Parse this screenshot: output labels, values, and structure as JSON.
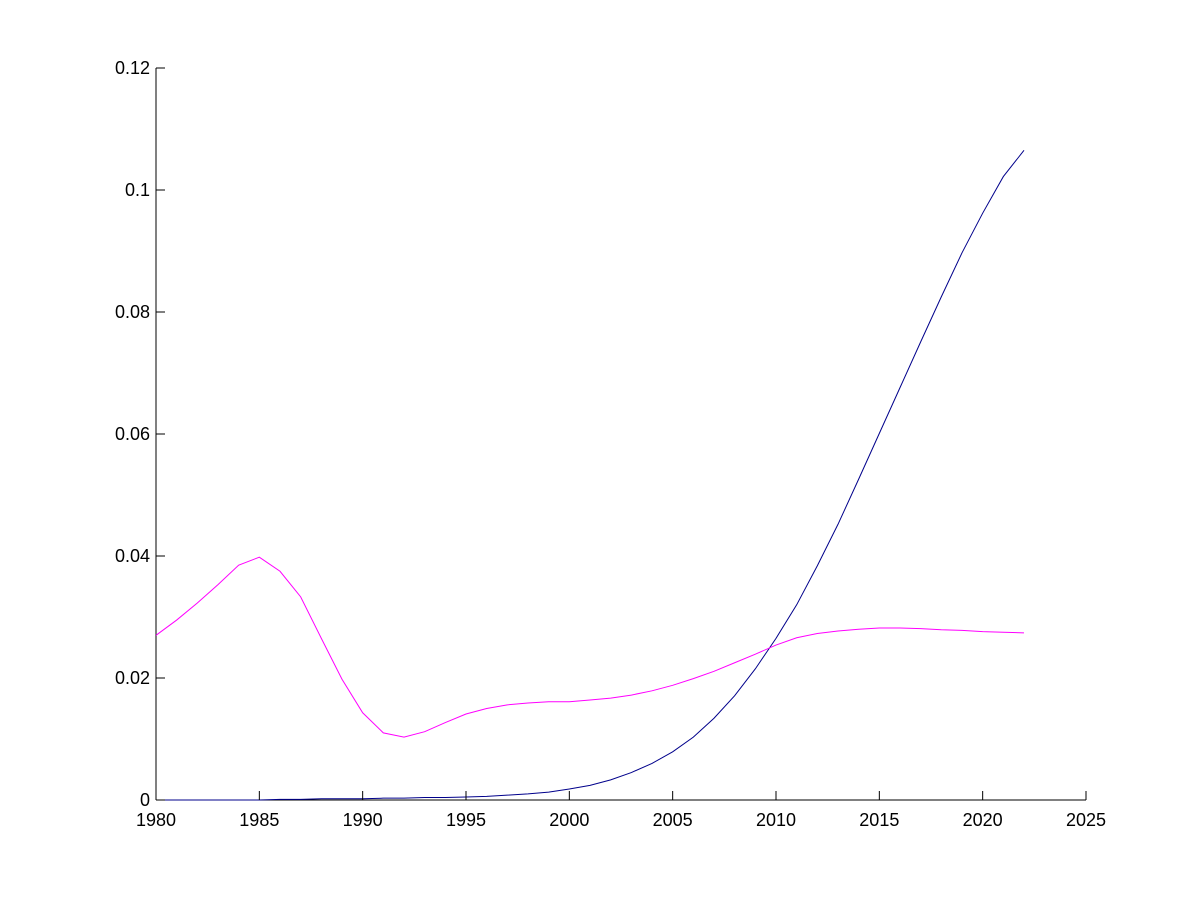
{
  "chart_data": {
    "type": "line",
    "title": "",
    "xlabel": "",
    "ylabel": "",
    "xlim": [
      1980,
      2025
    ],
    "ylim": [
      0,
      0.12
    ],
    "grid": false,
    "legend": "none",
    "x_ticks": [
      {
        "value": 1980,
        "label": "1980"
      },
      {
        "value": 1985,
        "label": "1985"
      },
      {
        "value": 1990,
        "label": "1990"
      },
      {
        "value": 1995,
        "label": "1995"
      },
      {
        "value": 2000,
        "label": "2000"
      },
      {
        "value": 2005,
        "label": "2005"
      },
      {
        "value": 2010,
        "label": "2010"
      },
      {
        "value": 2015,
        "label": "2015"
      },
      {
        "value": 2020,
        "label": "2020"
      },
      {
        "value": 2025,
        "label": "2025"
      }
    ],
    "y_ticks": [
      {
        "value": 0,
        "label": "0"
      },
      {
        "value": 0.02,
        "label": "0.02"
      },
      {
        "value": 0.04,
        "label": "0.04"
      },
      {
        "value": 0.06,
        "label": "0.06"
      },
      {
        "value": 0.08,
        "label": "0.08"
      },
      {
        "value": 0.1,
        "label": "0.1"
      },
      {
        "value": 0.12,
        "label": "0.12"
      }
    ],
    "x": [
      1980,
      1981,
      1982,
      1983,
      1984,
      1985,
      1986,
      1987,
      1988,
      1989,
      1990,
      1991,
      1992,
      1993,
      1994,
      1995,
      1996,
      1997,
      1998,
      1999,
      2000,
      2001,
      2002,
      2003,
      2004,
      2005,
      2006,
      2007,
      2008,
      2009,
      2010,
      2011,
      2012,
      2013,
      2014,
      2015,
      2016,
      2017,
      2018,
      2019,
      2020,
      2021,
      2022
    ],
    "series": [
      {
        "color": "#00008b",
        "values": [
          0.0,
          0.0,
          0.0,
          0.0,
          0.0,
          0.0,
          0.0001,
          0.0001,
          0.0002,
          0.0002,
          0.0002,
          0.0003,
          0.0003,
          0.0004,
          0.0004,
          0.0005,
          0.0006,
          0.0008,
          0.001,
          0.0013,
          0.0018,
          0.0024,
          0.0033,
          0.0045,
          0.006,
          0.0079,
          0.0103,
          0.0134,
          0.0171,
          0.0215,
          0.0265,
          0.032,
          0.0384,
          0.0452,
          0.0526,
          0.0601,
          0.0676,
          0.0751,
          0.0825,
          0.0897,
          0.0962,
          0.1022,
          0.1065
        ]
      },
      {
        "color": "#ff00ff",
        "values": [
          0.027,
          0.0295,
          0.0323,
          0.0353,
          0.0385,
          0.0398,
          0.0375,
          0.0333,
          0.0265,
          0.0198,
          0.0143,
          0.011,
          0.0103,
          0.0112,
          0.0127,
          0.0141,
          0.015,
          0.0156,
          0.0159,
          0.0161,
          0.0161,
          0.0164,
          0.0167,
          0.0172,
          0.0179,
          0.0188,
          0.0199,
          0.0211,
          0.0225,
          0.0239,
          0.0254,
          0.0266,
          0.0273,
          0.0277,
          0.028,
          0.0282,
          0.0282,
          0.0281,
          0.0279,
          0.0278,
          0.0276,
          0.0275,
          0.0274
        ]
      }
    ]
  }
}
